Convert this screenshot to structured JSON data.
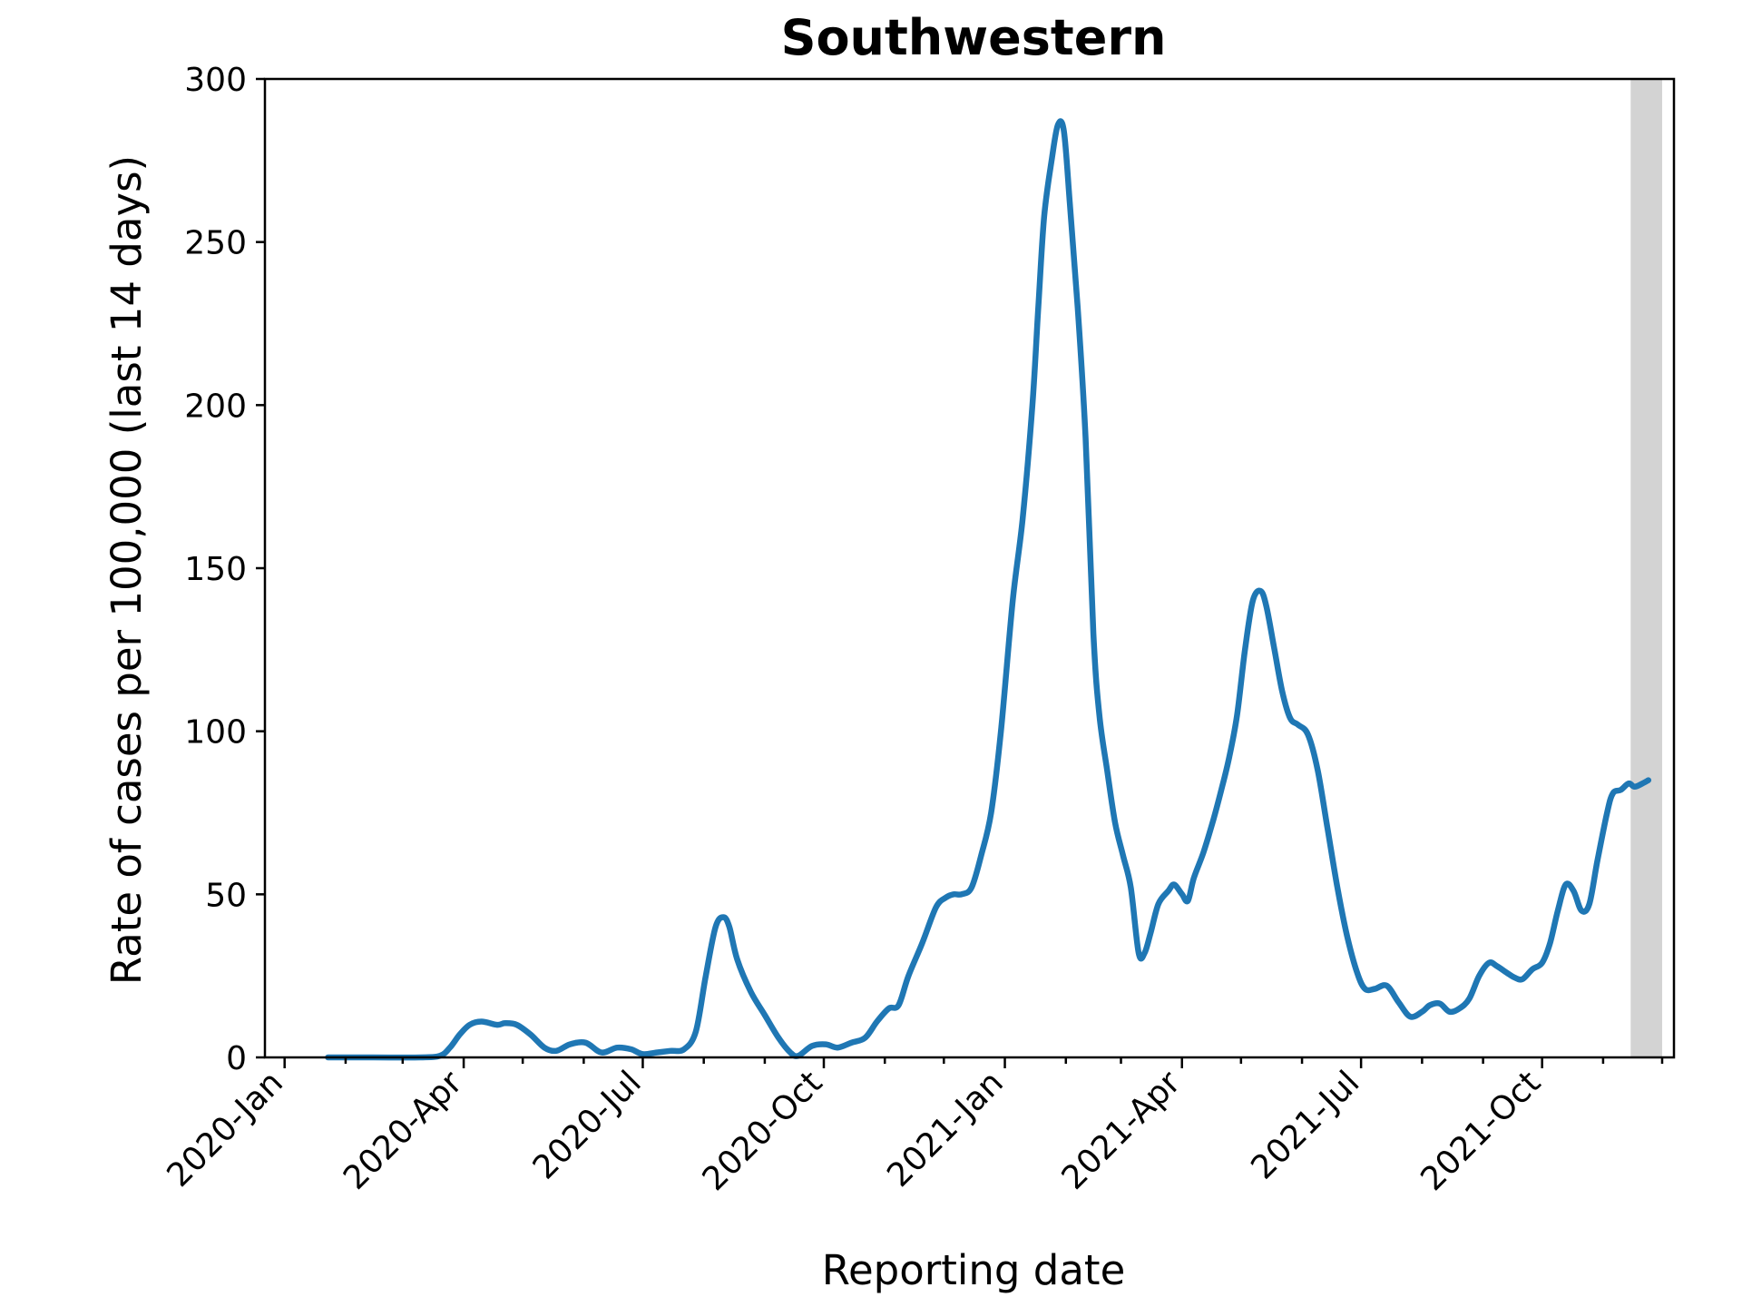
{
  "chart_data": {
    "type": "line",
    "title": "Southwestern",
    "xlabel": "Reporting date",
    "ylabel": "Rate of cases per 100,000 (last 14 days)",
    "x_tick_labels": [
      "2020-Jan",
      "2020-Apr",
      "2020-Jul",
      "2020-Oct",
      "2021-Jan",
      "2021-Apr",
      "2021-Jul",
      "2021-Oct"
    ],
    "x_tick_dates": [
      "2020-01-01",
      "2020-04-01",
      "2020-07-01",
      "2020-10-01",
      "2021-01-01",
      "2021-04-01",
      "2021-07-01",
      "2021-10-01"
    ],
    "x_minor_tick_dates": [
      "2020-02-01",
      "2020-03-01",
      "2020-05-01",
      "2020-06-01",
      "2020-08-01",
      "2020-09-01",
      "2020-11-01",
      "2020-12-01",
      "2021-02-01",
      "2021-03-01",
      "2021-05-01",
      "2021-06-01",
      "2021-08-01",
      "2021-09-01",
      "2021-11-01",
      "2021-12-01"
    ],
    "xlim": [
      "2019-12-22",
      "2021-12-07"
    ],
    "ylim": [
      0,
      300
    ],
    "y_ticks": [
      0,
      50,
      100,
      150,
      200,
      250,
      300
    ],
    "grid": false,
    "shaded_region": {
      "start": "2021-11-15",
      "end": "2021-12-01",
      "color": "#d3d3d3"
    },
    "series": [
      {
        "color": "#1f77b4",
        "points": [
          [
            "2020-01-23",
            0
          ],
          [
            "2020-02-15",
            0
          ],
          [
            "2020-03-10",
            0
          ],
          [
            "2020-03-20",
            0.5
          ],
          [
            "2020-03-25",
            3
          ],
          [
            "2020-03-30",
            7
          ],
          [
            "2020-04-04",
            10
          ],
          [
            "2020-04-10",
            11
          ],
          [
            "2020-04-18",
            10
          ],
          [
            "2020-04-22",
            10.5
          ],
          [
            "2020-04-28",
            10
          ],
          [
            "2020-05-05",
            7
          ],
          [
            "2020-05-12",
            3
          ],
          [
            "2020-05-18",
            2
          ],
          [
            "2020-05-25",
            4
          ],
          [
            "2020-06-02",
            4.5
          ],
          [
            "2020-06-10",
            1.5
          ],
          [
            "2020-06-18",
            3
          ],
          [
            "2020-06-25",
            2.5
          ],
          [
            "2020-07-01",
            1
          ],
          [
            "2020-07-08",
            1.5
          ],
          [
            "2020-07-15",
            2
          ],
          [
            "2020-07-22",
            2.5
          ],
          [
            "2020-07-28",
            8
          ],
          [
            "2020-08-02",
            25
          ],
          [
            "2020-08-07",
            40
          ],
          [
            "2020-08-11",
            43
          ],
          [
            "2020-08-14",
            40
          ],
          [
            "2020-08-18",
            30
          ],
          [
            "2020-08-25",
            20
          ],
          [
            "2020-09-01",
            13
          ],
          [
            "2020-09-08",
            6
          ],
          [
            "2020-09-14",
            1.5
          ],
          [
            "2020-09-18",
            0.5
          ],
          [
            "2020-09-25",
            3.5
          ],
          [
            "2020-10-02",
            4
          ],
          [
            "2020-10-08",
            3
          ],
          [
            "2020-10-15",
            4.5
          ],
          [
            "2020-10-22",
            6
          ],
          [
            "2020-10-28",
            11
          ],
          [
            "2020-11-03",
            15
          ],
          [
            "2020-11-08",
            16
          ],
          [
            "2020-11-13",
            25
          ],
          [
            "2020-11-20",
            35
          ],
          [
            "2020-11-27",
            46
          ],
          [
            "2020-12-02",
            49
          ],
          [
            "2020-12-06",
            50
          ],
          [
            "2020-12-10",
            50
          ],
          [
            "2020-12-15",
            52
          ],
          [
            "2020-12-20",
            62
          ],
          [
            "2020-12-25",
            75
          ],
          [
            "2020-12-30",
            100
          ],
          [
            "2021-01-05",
            140
          ],
          [
            "2021-01-10",
            165
          ],
          [
            "2021-01-15",
            200
          ],
          [
            "2021-01-18",
            230
          ],
          [
            "2021-01-21",
            258
          ],
          [
            "2021-01-25",
            276
          ],
          [
            "2021-01-28",
            286
          ],
          [
            "2021-01-31",
            284
          ],
          [
            "2021-02-03",
            262
          ],
          [
            "2021-02-07",
            230
          ],
          [
            "2021-02-11",
            190
          ],
          [
            "2021-02-15",
            130
          ],
          [
            "2021-02-18",
            105
          ],
          [
            "2021-02-22",
            88
          ],
          [
            "2021-02-26",
            72
          ],
          [
            "2021-03-02",
            62
          ],
          [
            "2021-03-06",
            52
          ],
          [
            "2021-03-10",
            32
          ],
          [
            "2021-03-13",
            32
          ],
          [
            "2021-03-16",
            38
          ],
          [
            "2021-03-20",
            47
          ],
          [
            "2021-03-25",
            51
          ],
          [
            "2021-03-28",
            53
          ],
          [
            "2021-04-01",
            50
          ],
          [
            "2021-04-04",
            48
          ],
          [
            "2021-04-07",
            55
          ],
          [
            "2021-04-12",
            63
          ],
          [
            "2021-04-17",
            73
          ],
          [
            "2021-04-21",
            82
          ],
          [
            "2021-04-25",
            92
          ],
          [
            "2021-04-29",
            105
          ],
          [
            "2021-05-03",
            125
          ],
          [
            "2021-05-07",
            140
          ],
          [
            "2021-05-11",
            143
          ],
          [
            "2021-05-14",
            138
          ],
          [
            "2021-05-18",
            125
          ],
          [
            "2021-05-22",
            112
          ],
          [
            "2021-05-26",
            104
          ],
          [
            "2021-05-30",
            102
          ],
          [
            "2021-06-04",
            99
          ],
          [
            "2021-06-09",
            88
          ],
          [
            "2021-06-14",
            70
          ],
          [
            "2021-06-19",
            52
          ],
          [
            "2021-06-24",
            37
          ],
          [
            "2021-06-29",
            26
          ],
          [
            "2021-07-03",
            21
          ],
          [
            "2021-07-08",
            21
          ],
          [
            "2021-07-14",
            22
          ],
          [
            "2021-07-20",
            17
          ],
          [
            "2021-07-26",
            12.5
          ],
          [
            "2021-08-01",
            14
          ],
          [
            "2021-08-05",
            16
          ],
          [
            "2021-08-10",
            16.5
          ],
          [
            "2021-08-15",
            14
          ],
          [
            "2021-08-20",
            15
          ],
          [
            "2021-08-25",
            18
          ],
          [
            "2021-08-30",
            25
          ],
          [
            "2021-09-04",
            29
          ],
          [
            "2021-09-08",
            28
          ],
          [
            "2021-09-13",
            26
          ],
          [
            "2021-09-17",
            24.5
          ],
          [
            "2021-09-21",
            24
          ],
          [
            "2021-09-26",
            27
          ],
          [
            "2021-10-01",
            29
          ],
          [
            "2021-10-05",
            35
          ],
          [
            "2021-10-09",
            45
          ],
          [
            "2021-10-13",
            53
          ],
          [
            "2021-10-17",
            51
          ],
          [
            "2021-10-21",
            45
          ],
          [
            "2021-10-25",
            47
          ],
          [
            "2021-10-29",
            60
          ],
          [
            "2021-11-03",
            75
          ],
          [
            "2021-11-06",
            81
          ],
          [
            "2021-11-10",
            82
          ],
          [
            "2021-11-14",
            84
          ],
          [
            "2021-11-17",
            83
          ],
          [
            "2021-11-21",
            84
          ],
          [
            "2021-11-24",
            85
          ]
        ]
      }
    ]
  }
}
